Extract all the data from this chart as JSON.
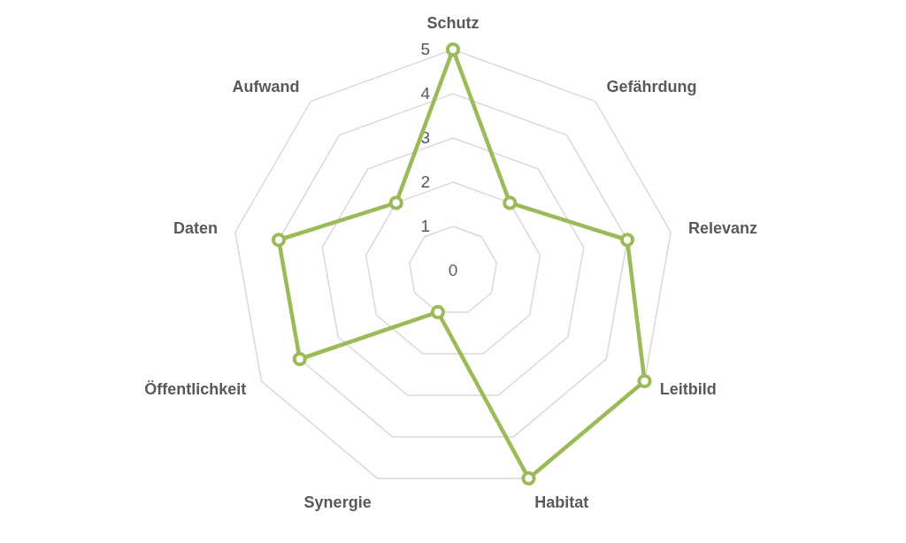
{
  "chart_data": {
    "type": "radar",
    "categories": [
      "Schutz",
      "Gefährdung",
      "Relevanz",
      "Leitbild",
      "Habitat",
      "Synergie",
      "Öffentlichkeit",
      "Daten",
      "Aufwand"
    ],
    "series": [
      {
        "color": "#9bbb59",
        "values": [
          5,
          2,
          4,
          5,
          5,
          1,
          4,
          4,
          2
        ]
      }
    ],
    "ylim": [
      0,
      5
    ],
    "yticks": [
      0,
      1,
      2,
      3,
      4,
      5
    ],
    "grid": true,
    "marker": "circle"
  }
}
